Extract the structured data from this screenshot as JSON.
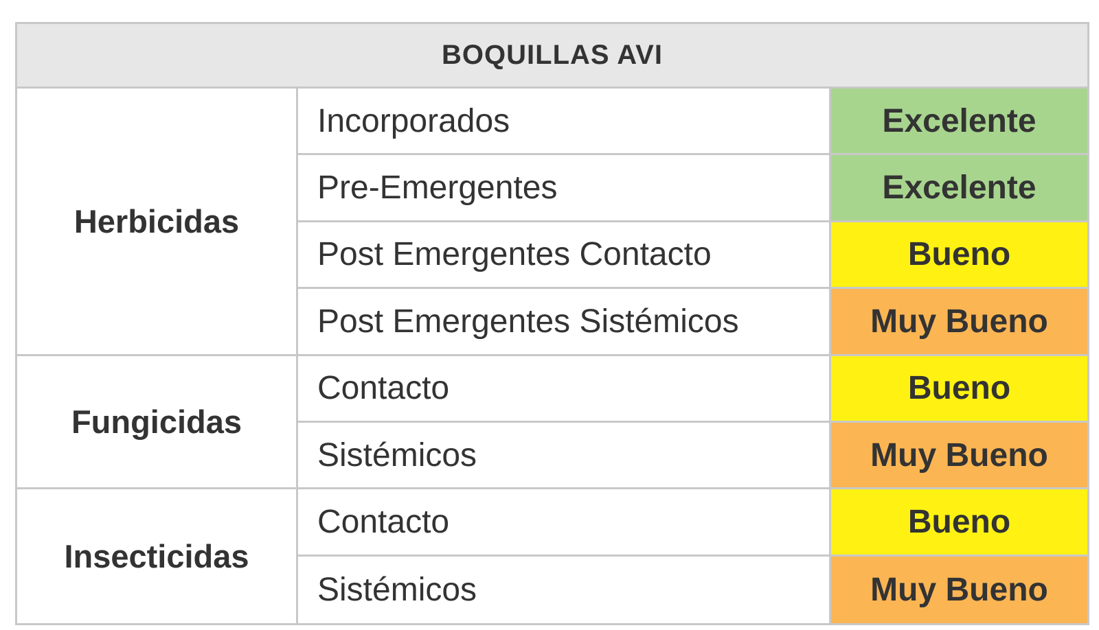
{
  "table": {
    "title": "BOQUILLAS AVI",
    "colors": {
      "header_bg": "#e6e7e6",
      "excelente": "#a8d58e",
      "bueno": "#fff212",
      "muy_bueno": "#fbb553"
    },
    "categories": [
      {
        "name": "Herbicidas",
        "rows": [
          {
            "label": "Incorporados",
            "rating": "Excelente",
            "color": "#a8d58e"
          },
          {
            "label": "Pre-Emergentes",
            "rating": "Excelente",
            "color": "#a8d58e"
          },
          {
            "label": "Post Emergentes Contacto",
            "rating": "Bueno",
            "color": "#fff212"
          },
          {
            "label": "Post Emergentes Sistémicos",
            "rating": "Muy Bueno",
            "color": "#fbb553"
          }
        ]
      },
      {
        "name": "Fungicidas",
        "rows": [
          {
            "label": "Contacto",
            "rating": "Bueno",
            "color": "#fff212"
          },
          {
            "label": "Sistémicos",
            "rating": "Muy Bueno",
            "color": "#fbb553"
          }
        ]
      },
      {
        "name": "Insecticidas",
        "rows": [
          {
            "label": "Contacto",
            "rating": "Bueno",
            "color": "#fff212"
          },
          {
            "label": "Sistémicos",
            "rating": "Muy Bueno",
            "color": "#fbb553"
          }
        ]
      }
    ]
  }
}
